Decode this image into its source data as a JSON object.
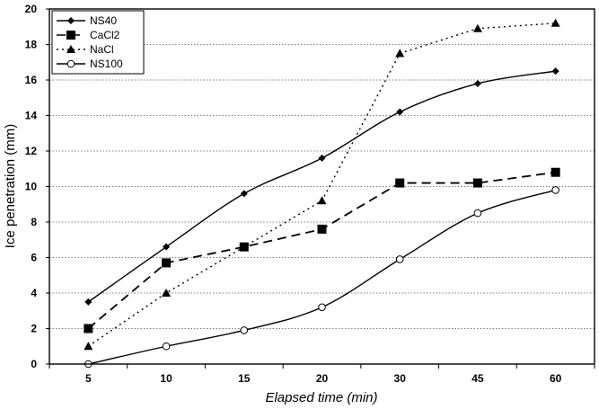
{
  "chart_data": {
    "type": "line",
    "categories": [
      "5",
      "10",
      "15",
      "20",
      "30",
      "45",
      "60"
    ],
    "xlabel": "Elapsed time (min)",
    "ylabel": "Ice penetration (mm)",
    "ylim": [
      0,
      20
    ],
    "yticks": [
      0,
      2,
      4,
      6,
      8,
      10,
      12,
      14,
      16,
      18,
      20
    ],
    "grid": "horizontal dotted",
    "legend_position": "top-left",
    "series": [
      {
        "name": "NS40",
        "values": [
          3.5,
          6.6,
          9.6,
          11.6,
          14.2,
          15.8,
          16.5
        ],
        "marker": "diamond",
        "dash": "solid",
        "smooth": true
      },
      {
        "name": "CaCl2",
        "values": [
          2.0,
          5.7,
          6.6,
          7.6,
          10.2,
          10.2,
          10.8
        ],
        "marker": "square",
        "dash": "long-dash",
        "smooth": false
      },
      {
        "name": "NaCl",
        "values": [
          1.0,
          4.0,
          6.6,
          9.2,
          17.5,
          18.9,
          19.2
        ],
        "marker": "triangle",
        "dash": "dotted",
        "smooth": false
      },
      {
        "name": "NS100",
        "values": [
          0.0,
          1.0,
          1.9,
          3.2,
          5.9,
          8.5,
          9.8
        ],
        "marker": "open-circle",
        "dash": "solid",
        "smooth": true
      }
    ]
  }
}
